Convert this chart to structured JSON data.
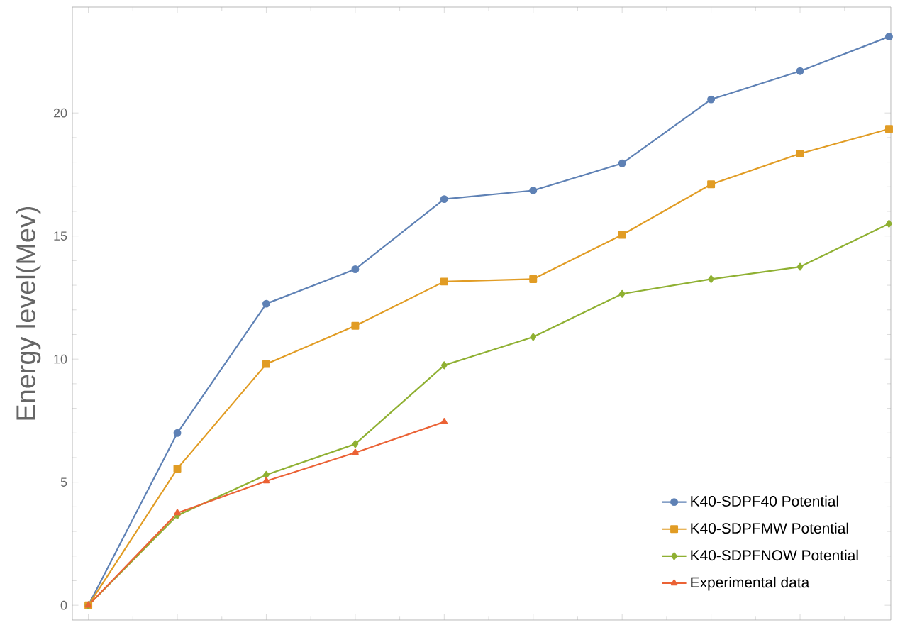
{
  "chart_data": {
    "type": "line",
    "ylabel": "Energy level(Mev)",
    "categories": [
      null,
      null,
      null,
      null,
      null,
      null,
      null,
      null,
      null,
      null
    ],
    "series": [
      {
        "name": "K40-SDPF40 Potential",
        "color": "#5e81b5",
        "marker": "circle",
        "values": [
          0,
          7.0,
          12.25,
          13.65,
          16.5,
          16.85,
          17.95,
          20.55,
          21.7,
          23.1
        ]
      },
      {
        "name": "K40-SDPFMW Potential",
        "color": "#e19c24",
        "marker": "square",
        "values": [
          0,
          5.55,
          9.8,
          11.35,
          13.15,
          13.25,
          15.05,
          17.1,
          18.35,
          19.35
        ]
      },
      {
        "name": "K40-SDPFNOW Potential",
        "color": "#8fb032",
        "marker": "diamond",
        "values": [
          0,
          3.65,
          5.3,
          6.55,
          9.75,
          10.9,
          12.65,
          13.25,
          13.75,
          15.5
        ]
      },
      {
        "name": "Experimental data",
        "color": "#eb6235",
        "marker": "triangle",
        "values": [
          0,
          3.75,
          5.05,
          6.2,
          7.45,
          null,
          null,
          null,
          null,
          null
        ]
      }
    ],
    "ylim": [
      -0.6,
      24.3
    ],
    "yticks": [
      0,
      5,
      10,
      15,
      20
    ],
    "grid": false,
    "legend": "bottom right",
    "line_style": "solid"
  }
}
